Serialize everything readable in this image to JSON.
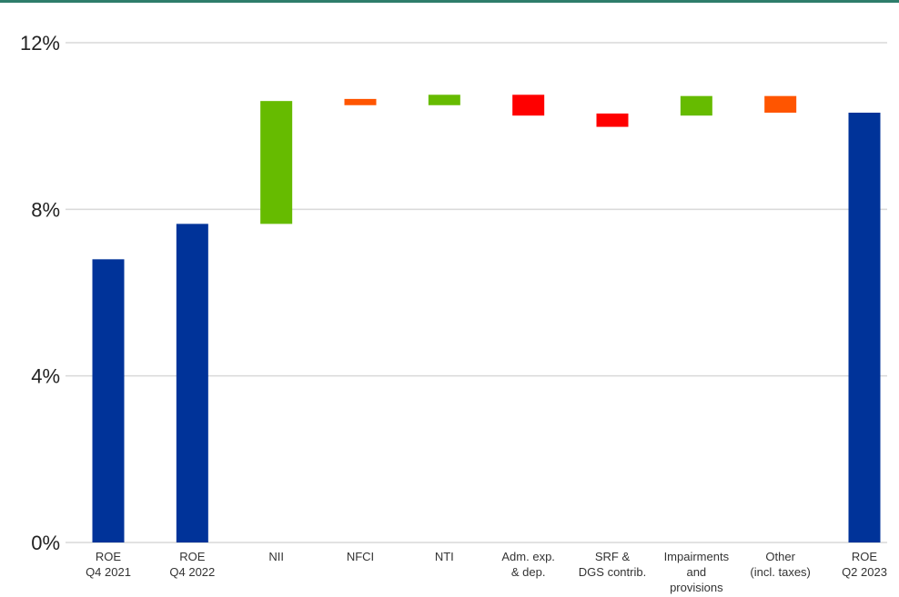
{
  "chart_data": {
    "type": "waterfall",
    "title": "",
    "xlabel": "",
    "ylabel": "",
    "ylim": [
      0,
      12
    ],
    "yticks": [
      "0%",
      "4%",
      "8%",
      "12%"
    ],
    "ytick_values": [
      0,
      4,
      8,
      12
    ],
    "grid": true,
    "legend": "none",
    "categories": [
      [
        "ROE",
        "Q4 2021"
      ],
      [
        "ROE",
        "Q4 2022"
      ],
      [
        "NII"
      ],
      [
        "NFCI"
      ],
      [
        "NTI"
      ],
      [
        "Adm. exp.",
        "& dep."
      ],
      [
        "SRF &",
        "DGS contrib."
      ],
      [
        "Impairments",
        "and",
        "provisions"
      ],
      [
        "Other",
        "(incl. taxes)"
      ],
      [
        "ROE",
        "Q2 2023"
      ]
    ],
    "bars": [
      {
        "start": 0,
        "end": 6.8,
        "kind": "total"
      },
      {
        "start": 0,
        "end": 7.65,
        "kind": "total"
      },
      {
        "start": 7.65,
        "end": 10.6,
        "kind": "increase"
      },
      {
        "start": 10.5,
        "end": 10.65,
        "kind": "other"
      },
      {
        "start": 10.5,
        "end": 10.75,
        "kind": "increase"
      },
      {
        "start": 10.75,
        "end": 10.25,
        "kind": "decrease"
      },
      {
        "start": 10.3,
        "end": 9.98,
        "kind": "decrease"
      },
      {
        "start": 10.25,
        "end": 10.72,
        "kind": "increase"
      },
      {
        "start": 10.72,
        "end": 10.32,
        "kind": "other"
      },
      {
        "start": 0,
        "end": 10.32,
        "kind": "total"
      }
    ],
    "colors": {
      "total": "#003399",
      "increase": "#66bb00",
      "decrease": "#ff0000",
      "other": "#ff5500",
      "grid": "#d9d9d9"
    }
  }
}
